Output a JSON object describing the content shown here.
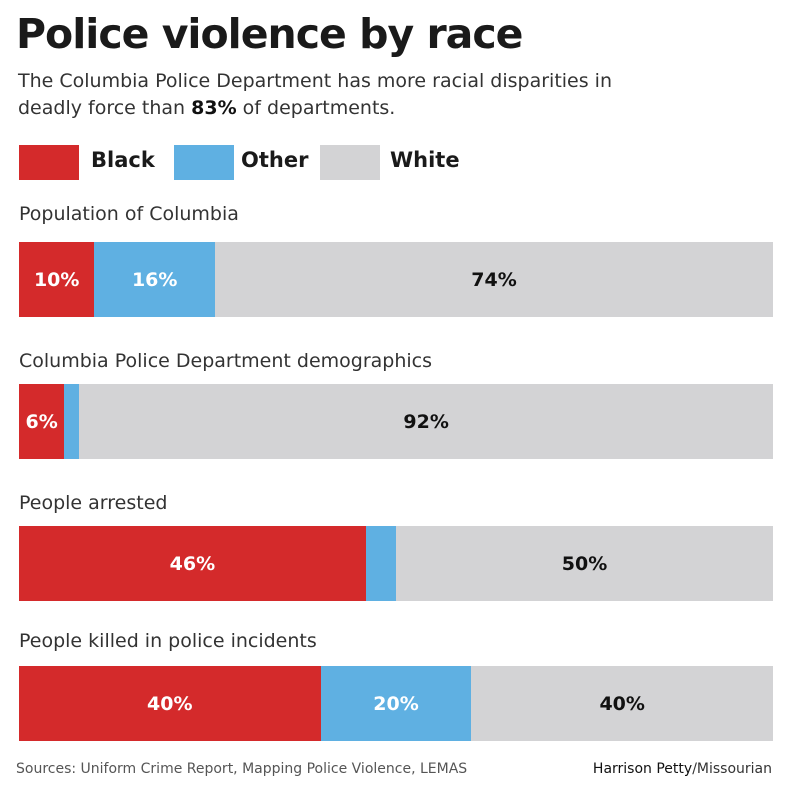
{
  "title": "Police violence by race",
  "subtitle": {
    "before": "The Columbia Police Department has more racial disparities in deadly force than ",
    "highlight": "83%",
    "after": " of departments."
  },
  "colors": {
    "Black": "#d42a2b",
    "Other": "#5fb0e2",
    "White": "#d3d3d5"
  },
  "chart_data": {
    "type": "bar",
    "orientation": "horizontal-stacked-100",
    "title": "Police violence by race",
    "legend": [
      "Black",
      "Other",
      "White"
    ],
    "legend_placement": "top-left",
    "categories": [
      "Population of Columbia",
      "Columbia Police Department demographics",
      "People arrested",
      "People killed in police incidents"
    ],
    "series": [
      {
        "name": "Black",
        "values": [
          10,
          6,
          46,
          40
        ],
        "labels": [
          "10%",
          "6%",
          "46%",
          "40%"
        ]
      },
      {
        "name": "Other",
        "values": [
          16,
          2,
          4,
          20
        ],
        "labels": [
          "16%",
          null,
          null,
          "20%"
        ]
      },
      {
        "name": "White",
        "values": [
          74,
          92,
          50,
          40
        ],
        "labels": [
          "74%",
          "92%",
          "50%",
          "40%"
        ]
      }
    ],
    "xlim": [
      0,
      100
    ]
  },
  "footer": {
    "sources": "Sources: Uniform Crime Report, Mapping Police Violence, LEMAS",
    "credit_name": "Harrison Petty",
    "credit_org": "/Missourian"
  }
}
